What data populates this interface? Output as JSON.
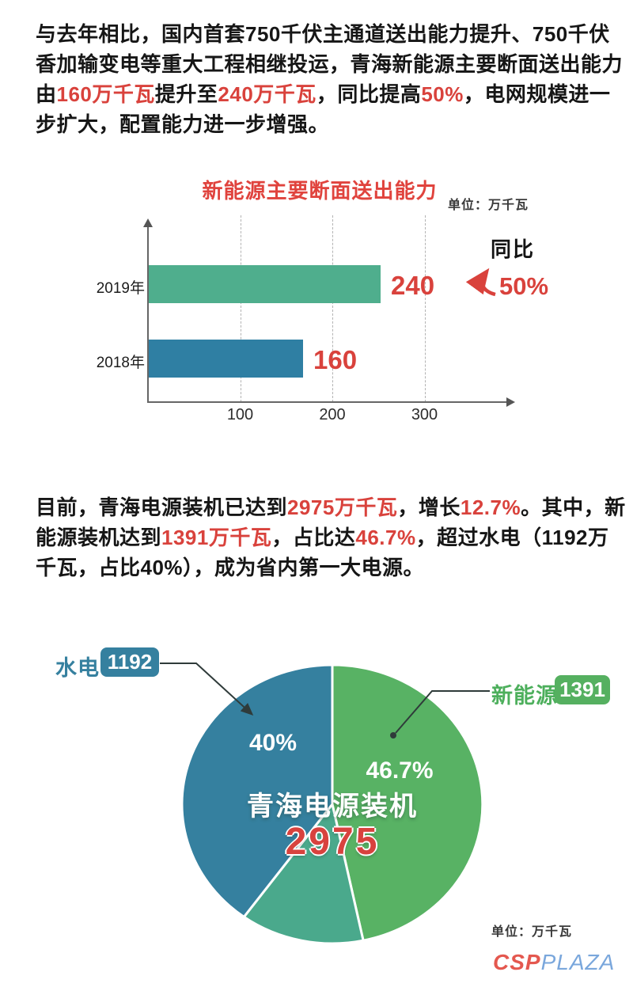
{
  "intro": {
    "lines": [
      [
        {
          "t": "与去年相比，国内首套750千伏主通道送出能力提升、750千伏",
          "hl": false
        }
      ],
      [
        {
          "t": "香加输变电等重大工程相继投运，青海新能源主要断面送出能力",
          "hl": false
        }
      ],
      [
        {
          "t": "由",
          "hl": false
        },
        {
          "t": "160万千瓦",
          "hl": true
        },
        {
          "t": "提升至",
          "hl": false
        },
        {
          "t": "240万千瓦",
          "hl": true
        },
        {
          "t": "，同比提高",
          "hl": false
        },
        {
          "t": "50%",
          "hl": true
        },
        {
          "t": "，电网规模进一",
          "hl": false
        }
      ],
      [
        {
          "t": "步扩大，配置能力进一步增强。",
          "hl": false
        }
      ]
    ]
  },
  "summary": {
    "lines": [
      [
        {
          "t": "目前，青海电源装机已达到",
          "hl": false
        },
        {
          "t": "2975万千瓦",
          "hl": true
        },
        {
          "t": "，增长",
          "hl": false
        },
        {
          "t": "12.7%",
          "hl": true
        },
        {
          "t": "。其中，新",
          "hl": false
        }
      ],
      [
        {
          "t": "能源装机达到",
          "hl": false
        },
        {
          "t": "1391万千瓦",
          "hl": true
        },
        {
          "t": "，占比达",
          "hl": false
        },
        {
          "t": "46.7%",
          "hl": true
        },
        {
          "t": "，超过水电（1192万",
          "hl": false
        }
      ],
      [
        {
          "t": "千瓦，占比40%），成为省内第一大电源。",
          "hl": false
        }
      ]
    ]
  },
  "chart_data": [
    {
      "type": "bar",
      "orientation": "horizontal",
      "title": "新能源主要断面送出能力",
      "unit_label": "单位：万千瓦",
      "categories": [
        "2019年",
        "2018年"
      ],
      "values": [
        240,
        160
      ],
      "bar_colors": [
        "#4fae8d",
        "#2f7fa3"
      ],
      "value_label_color": "#d9423c",
      "x_ticks": [
        100,
        200,
        300
      ],
      "xlim": [
        0,
        380
      ],
      "grid": "dashed-vertical",
      "yoy_label": "同比",
      "yoy_value": "50%"
    },
    {
      "type": "pie",
      "center_title": "青海电源装机",
      "center_value": "2975",
      "unit_label": "单位：万千瓦",
      "slices": [
        {
          "name": "新能源",
          "value": 1391,
          "pct_label": "46.7%",
          "pct_value": 46.7,
          "color": "#58b264"
        },
        {
          "name": "",
          "value": 392,
          "pct_label": "",
          "pct_value": 13.3,
          "color": "#4aa98c"
        },
        {
          "name": "水电",
          "value": 1192,
          "pct_label": "40%",
          "pct_value": 40.0,
          "color": "#35809f"
        }
      ],
      "callouts": {
        "left": {
          "label": "水电",
          "value": "1192",
          "color": "#35809f"
        },
        "right": {
          "label": "新能源",
          "value": "1391",
          "color": "#55b060"
        }
      }
    }
  ],
  "colors": {
    "highlight_red": "#d9423c",
    "title_red": "#e0433d",
    "axis_gray": "#666666",
    "hydro_teal": "#35809f",
    "newenergy_green": "#58b264",
    "other_seagreen": "#4aa98c"
  },
  "logo": {
    "csp": "CSP",
    "plaza": "PLAZA"
  }
}
